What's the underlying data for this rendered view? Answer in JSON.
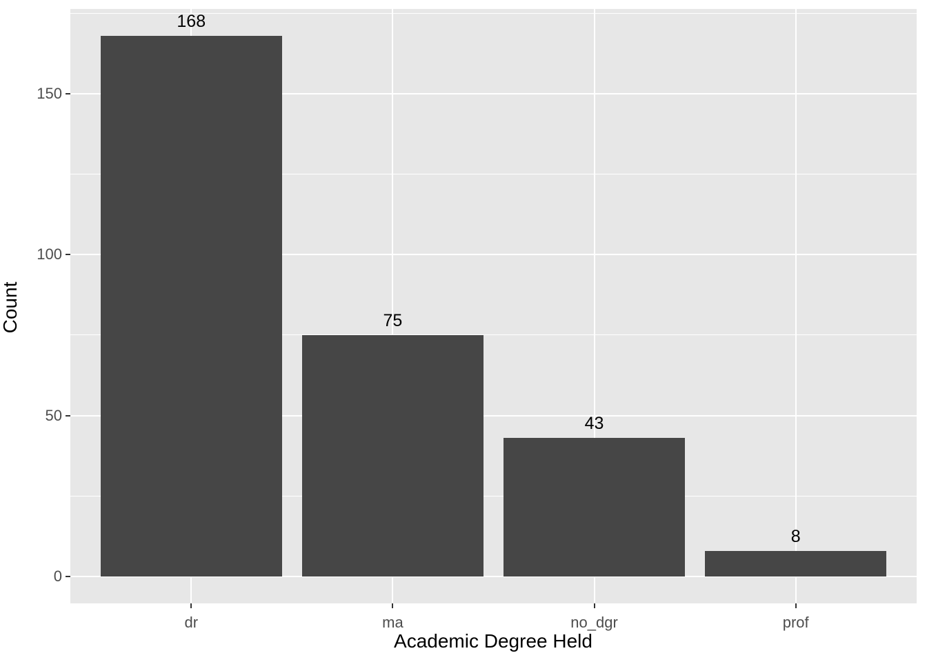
{
  "chart_data": {
    "type": "bar",
    "categories": [
      "dr",
      "ma",
      "no_dgr",
      "prof"
    ],
    "values": [
      168,
      75,
      43,
      8
    ],
    "bar_labels": [
      "168",
      "75",
      "43",
      "8"
    ],
    "xlabel": "Academic Degree Held",
    "ylabel": "Count",
    "y_tick_labels": [
      "0",
      "50",
      "100",
      "150"
    ],
    "y_major_breaks": [
      0,
      50,
      100,
      150
    ],
    "y_minor_breaks": [
      25,
      75,
      125,
      175
    ],
    "ylim": [
      -8.4,
      176.4
    ],
    "grid": true,
    "legend": "none",
    "colors": {
      "bar_fill": "#464646",
      "panel_background": "#E7E7E7",
      "gridline": "#FFFFFF",
      "tick_label": "#4D4D4D",
      "axis_title": "#000000",
      "tick_mark": "#333333",
      "outer_background": "#FFFFFF"
    }
  }
}
